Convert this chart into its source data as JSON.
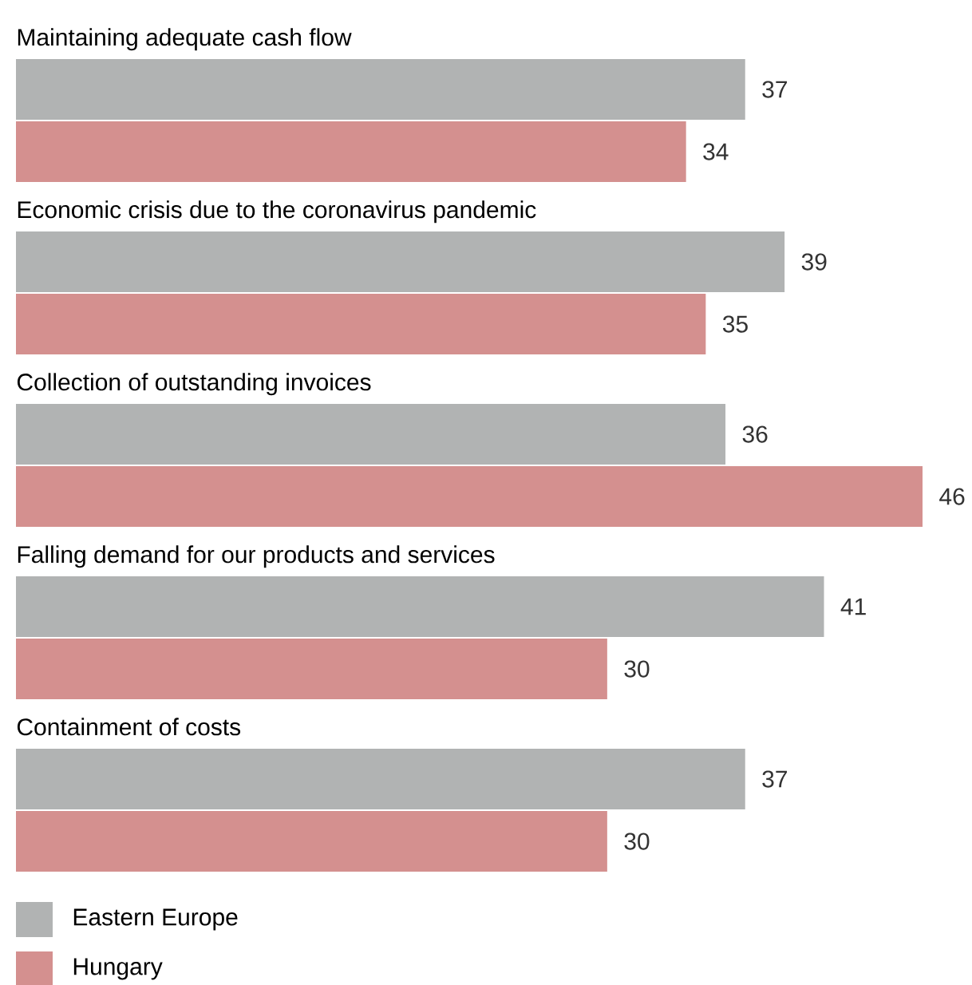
{
  "chart_data": {
    "type": "bar",
    "orientation": "horizontal",
    "categories": [
      "Maintaining adequate cash flow",
      "Economic crisis due to the coronavirus pandemic",
      "Collection of outstanding invoices",
      "Falling demand for our products and services",
      "Containment of costs"
    ],
    "series": [
      {
        "name": "Eastern Europe",
        "color": "#b1b3b3",
        "values": [
          37,
          39,
          36,
          41,
          37
        ]
      },
      {
        "name": "Hungary",
        "color": "#d4908f",
        "values": [
          34,
          35,
          46,
          30,
          30
        ]
      }
    ],
    "data_labels": true,
    "legend": "bottom left"
  }
}
